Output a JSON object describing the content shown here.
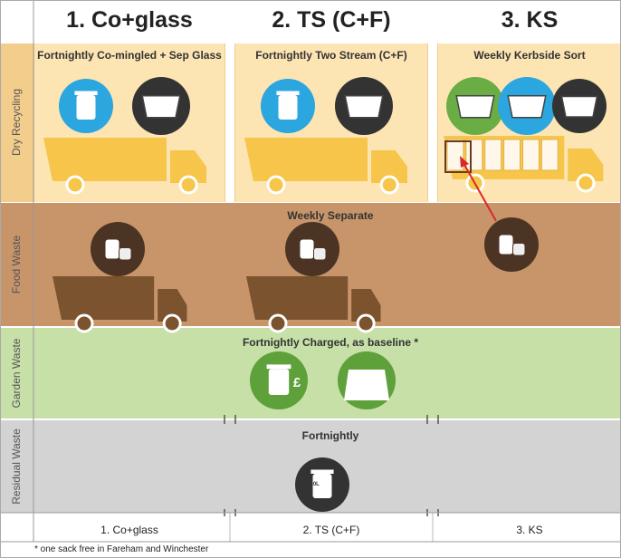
{
  "columns": [
    "1. Co+glass",
    "2. TS (C+F)",
    "3. KS"
  ],
  "rows": [
    {
      "label": "Dry Recycling",
      "descriptions": [
        "Fortnightly Co-mingled + Sep Glass",
        "Fortnightly Two Stream (C+F)",
        "Weekly Kerbside Sort"
      ]
    },
    {
      "label": "Food Waste",
      "description": "Weekly Separate"
    },
    {
      "label": "Garden Waste",
      "description": "Fortnightly Charged, as baseline *",
      "icon_text": "£"
    },
    {
      "label": "Residual Waste",
      "description": "Fortnightly",
      "icon_text": "240L"
    }
  ],
  "footnote": "* one sack free in Fareham and Winchester"
}
